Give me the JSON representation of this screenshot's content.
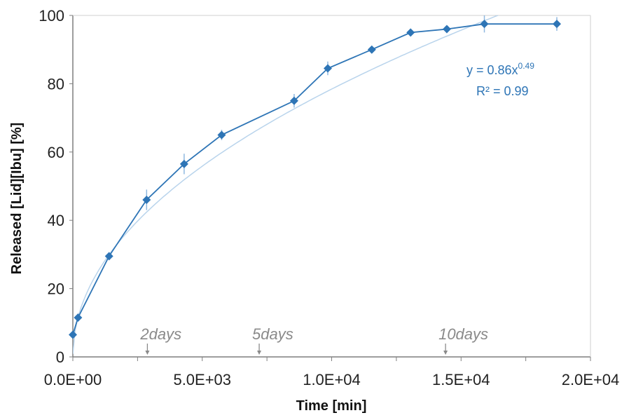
{
  "chart_data": {
    "type": "scatter",
    "xlabel": "Time [min]",
    "ylabel": "Released [Lid][Ibu] [%]",
    "xlim": [
      0,
      20000
    ],
    "ylim": [
      0,
      100
    ],
    "x_tick_labels": [
      "0.0E+00",
      "5.0E+03",
      "1.0E+04",
      "1.5E+04",
      "2.0E+04"
    ],
    "y_tick_labels": [
      "0",
      "20",
      "40",
      "60",
      "80",
      "100"
    ],
    "grid": false,
    "series": [
      {
        "x": [
          0,
          200,
          1400,
          2850,
          4300,
          5750,
          8550,
          9850,
          11550,
          13050,
          14450,
          15900,
          18700
        ],
        "y": [
          6.5,
          11.5,
          29.5,
          46,
          56.5,
          65,
          75,
          84.5,
          90,
          95,
          96,
          97.5,
          97.5
        ],
        "error": [
          1,
          1,
          1,
          3,
          3,
          1.5,
          2,
          2,
          1,
          1,
          1,
          2.5,
          2
        ]
      }
    ],
    "trendline": {
      "equation_base": "y = 0.86x",
      "equation_exponent": "0.49",
      "r_squared": "R² = 0.99",
      "a": 0.86,
      "b": 0.49
    },
    "annotations": [
      {
        "text": "2days",
        "x": 2880
      },
      {
        "text": "5days",
        "x": 7200
      },
      {
        "text": "10days",
        "x": 14400
      }
    ],
    "colors": {
      "series": "#2e75b6",
      "marker": "#2e75b6",
      "trendline": "#b9d4ec",
      "annotation": "#8a8a8a",
      "axis": "#888888"
    }
  }
}
